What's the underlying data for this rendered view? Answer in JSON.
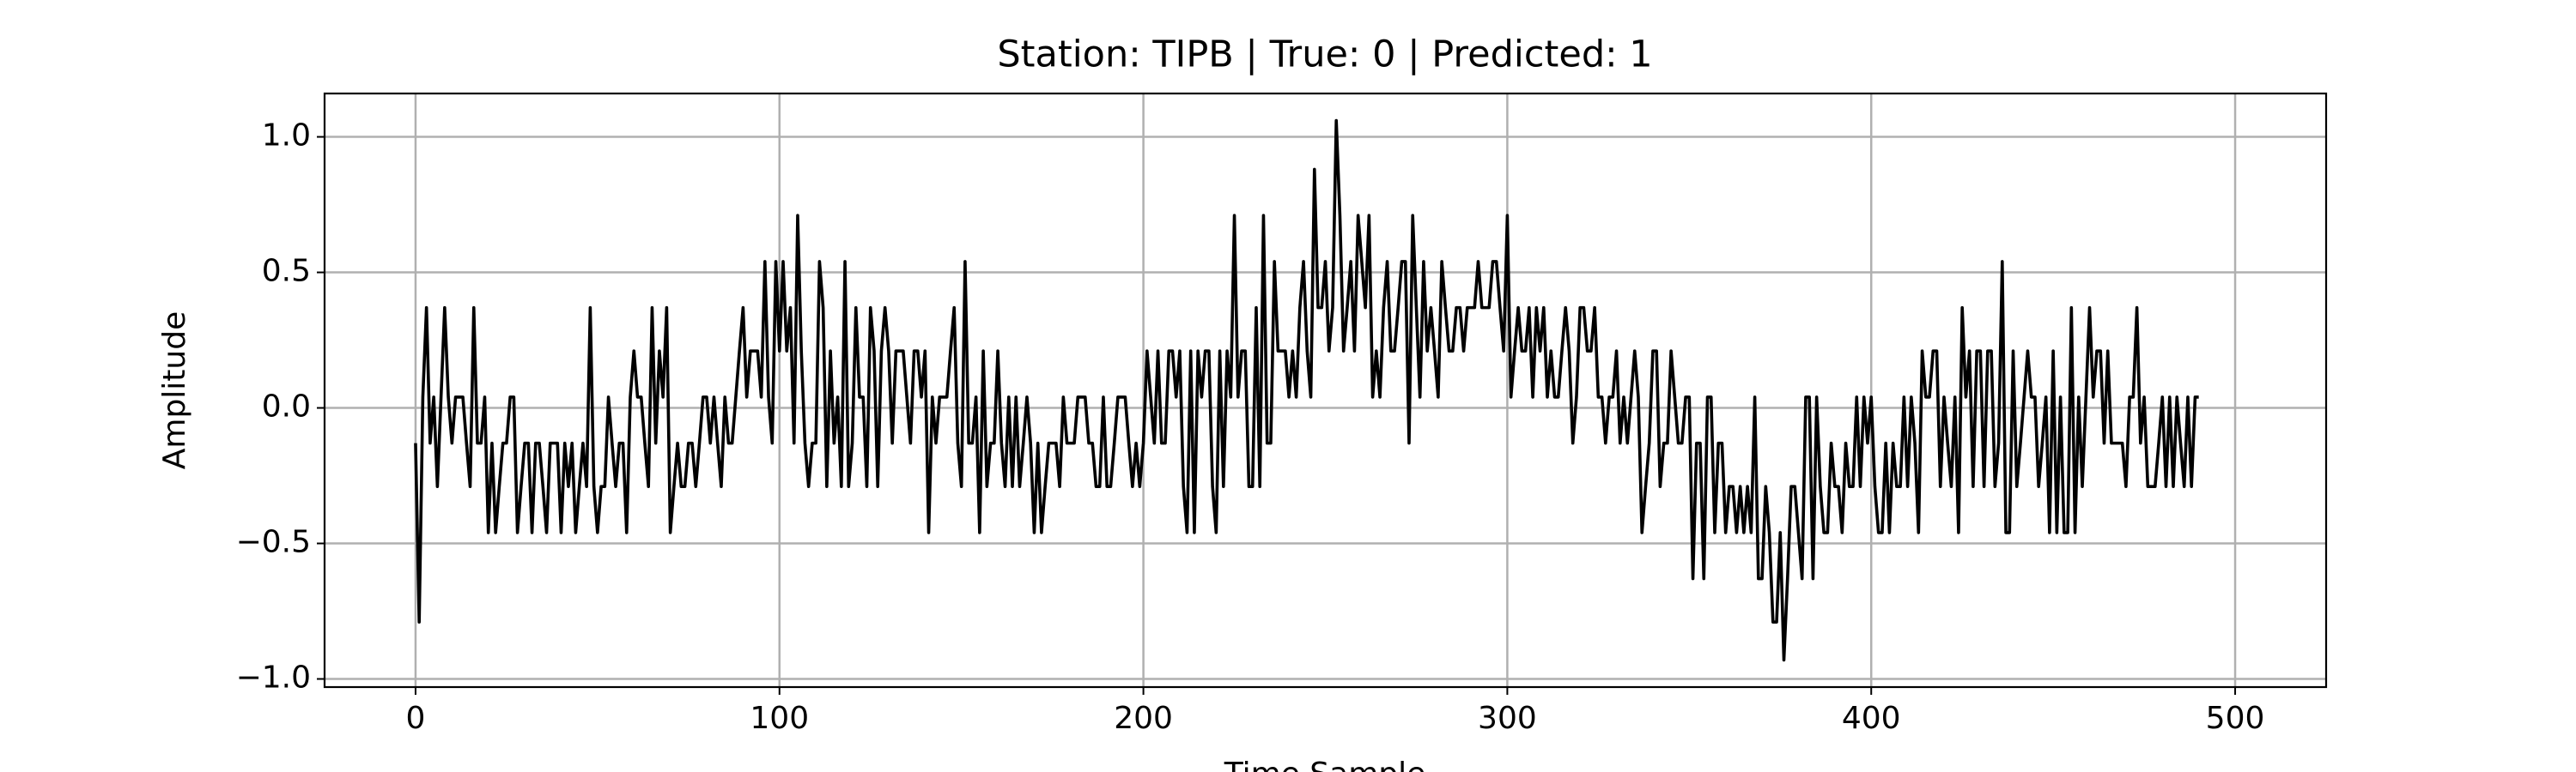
{
  "chart_data": {
    "type": "line",
    "title": "Station: TIPB | True: 0 | Predicted: 1",
    "x_label": "Time Sample",
    "y_label": "Amplitude",
    "color": "#000000",
    "grid": true,
    "xlim": [
      -25,
      525
    ],
    "xticks": [
      0,
      100,
      200,
      300,
      400,
      500
    ],
    "ylim": [
      -1.03,
      1.16
    ],
    "yticks": [
      {
        "value": -1.0,
        "label": "−1.0"
      },
      {
        "value": -0.5,
        "label": "−0.5"
      },
      {
        "value": 0.0,
        "label": "0.0"
      },
      0.5,
      {
        "value": 1.0,
        "label": "1.0"
      }
    ],
    "values": [
      -0.13,
      -0.79,
      0.04,
      0.37,
      -0.13,
      0.04,
      -0.29,
      0.04,
      0.37,
      0.04,
      -0.13,
      0.04,
      0.04,
      0.04,
      -0.13,
      -0.29,
      0.37,
      -0.13,
      -0.13,
      0.04,
      -0.46,
      -0.13,
      -0.46,
      -0.29,
      -0.13,
      -0.13,
      0.04,
      0.04,
      -0.46,
      -0.29,
      -0.13,
      -0.13,
      -0.46,
      -0.13,
      -0.13,
      -0.29,
      -0.46,
      -0.13,
      -0.13,
      -0.13,
      -0.46,
      -0.13,
      -0.29,
      -0.13,
      -0.46,
      -0.29,
      -0.13,
      -0.29,
      0.37,
      -0.29,
      -0.46,
      -0.29,
      -0.29,
      0.04,
      -0.13,
      -0.29,
      -0.13,
      -0.13,
      -0.46,
      0.04,
      0.21,
      0.04,
      0.04,
      -0.13,
      -0.29,
      0.37,
      -0.13,
      0.21,
      0.04,
      0.37,
      -0.46,
      -0.29,
      -0.13,
      -0.29,
      -0.29,
      -0.13,
      -0.13,
      -0.29,
      -0.13,
      0.04,
      0.04,
      -0.13,
      0.04,
      -0.13,
      -0.29,
      0.04,
      -0.13,
      -0.13,
      0.04,
      0.21,
      0.37,
      0.04,
      0.21,
      0.21,
      0.21,
      0.04,
      0.54,
      0.04,
      -0.13,
      0.54,
      0.21,
      0.54,
      0.21,
      0.37,
      -0.13,
      0.71,
      0.21,
      -0.13,
      -0.29,
      -0.13,
      -0.13,
      0.54,
      0.37,
      -0.29,
      0.21,
      -0.13,
      0.04,
      -0.29,
      0.54,
      -0.29,
      -0.13,
      0.37,
      0.04,
      0.04,
      -0.29,
      0.37,
      0.21,
      -0.29,
      0.21,
      0.37,
      0.21,
      -0.13,
      0.21,
      0.21,
      0.21,
      0.04,
      -0.13,
      0.21,
      0.21,
      0.04,
      0.21,
      -0.46,
      0.04,
      -0.13,
      0.04,
      0.04,
      0.04,
      0.21,
      0.37,
      -0.13,
      -0.29,
      0.54,
      -0.13,
      -0.13,
      0.04,
      -0.46,
      0.21,
      -0.29,
      -0.13,
      -0.13,
      0.21,
      -0.13,
      -0.29,
      0.04,
      -0.29,
      0.04,
      -0.29,
      -0.13,
      0.04,
      -0.13,
      -0.46,
      -0.13,
      -0.46,
      -0.29,
      -0.13,
      -0.13,
      -0.13,
      -0.29,
      0.04,
      -0.13,
      -0.13,
      -0.13,
      0.04,
      0.04,
      0.04,
      -0.13,
      -0.13,
      -0.29,
      -0.29,
      0.04,
      -0.29,
      -0.29,
      -0.13,
      0.04,
      0.04,
      0.04,
      -0.13,
      -0.29,
      -0.13,
      -0.29,
      -0.13,
      0.21,
      0.04,
      -0.13,
      0.21,
      -0.13,
      -0.13,
      0.21,
      0.21,
      0.04,
      0.21,
      -0.29,
      -0.46,
      0.21,
      -0.46,
      0.21,
      0.04,
      0.21,
      0.21,
      -0.29,
      -0.46,
      0.21,
      -0.29,
      0.21,
      0.04,
      0.71,
      0.04,
      0.21,
      0.21,
      -0.29,
      -0.29,
      0.37,
      -0.29,
      0.71,
      -0.13,
      -0.13,
      0.54,
      0.21,
      0.21,
      0.21,
      0.04,
      0.21,
      0.04,
      0.37,
      0.54,
      0.21,
      0.04,
      0.88,
      0.37,
      0.37,
      0.54,
      0.21,
      0.37,
      1.06,
      0.71,
      0.21,
      0.37,
      0.54,
      0.21,
      0.71,
      0.54,
      0.37,
      0.71,
      0.04,
      0.21,
      0.04,
      0.37,
      0.54,
      0.21,
      0.21,
      0.37,
      0.54,
      0.54,
      -0.13,
      0.71,
      0.37,
      0.04,
      0.54,
      0.21,
      0.37,
      0.21,
      0.04,
      0.54,
      0.37,
      0.21,
      0.21,
      0.37,
      0.37,
      0.21,
      0.37,
      0.37,
      0.37,
      0.54,
      0.37,
      0.37,
      0.37,
      0.54,
      0.54,
      0.37,
      0.21,
      0.71,
      0.04,
      0.21,
      0.37,
      0.21,
      0.21,
      0.37,
      0.04,
      0.37,
      0.21,
      0.37,
      0.04,
      0.21,
      0.04,
      0.04,
      0.21,
      0.37,
      0.21,
      -0.13,
      0.04,
      0.37,
      0.37,
      0.21,
      0.21,
      0.37,
      0.04,
      0.04,
      -0.13,
      0.04,
      0.04,
      0.21,
      -0.13,
      0.04,
      -0.13,
      0.04,
      0.21,
      0.04,
      -0.46,
      -0.29,
      -0.13,
      0.21,
      0.21,
      -0.29,
      -0.13,
      -0.13,
      0.21,
      0.04,
      -0.13,
      -0.13,
      0.04,
      0.04,
      -0.63,
      -0.13,
      -0.13,
      -0.63,
      0.04,
      0.04,
      -0.46,
      -0.13,
      -0.13,
      -0.46,
      -0.29,
      -0.29,
      -0.46,
      -0.29,
      -0.46,
      -0.29,
      -0.46,
      0.04,
      -0.63,
      -0.63,
      -0.29,
      -0.46,
      -0.79,
      -0.79,
      -0.46,
      -0.93,
      -0.63,
      -0.29,
      -0.29,
      -0.46,
      -0.63,
      0.04,
      0.04,
      -0.63,
      0.04,
      -0.29,
      -0.46,
      -0.46,
      -0.13,
      -0.29,
      -0.29,
      -0.46,
      -0.13,
      -0.29,
      -0.29,
      0.04,
      -0.29,
      0.04,
      -0.13,
      0.04,
      -0.29,
      -0.46,
      -0.46,
      -0.13,
      -0.46,
      -0.13,
      -0.29,
      -0.29,
      0.04,
      -0.29,
      0.04,
      -0.13,
      -0.46,
      0.21,
      0.04,
      0.04,
      0.21,
      0.21,
      -0.29,
      0.04,
      -0.13,
      -0.29,
      0.04,
      -0.46,
      0.37,
      0.04,
      0.21,
      -0.29,
      0.21,
      0.21,
      -0.29,
      0.21,
      0.21,
      -0.29,
      -0.13,
      0.54,
      -0.46,
      -0.46,
      0.21,
      -0.29,
      -0.13,
      0.04,
      0.21,
      0.04,
      0.04,
      -0.29,
      -0.13,
      0.04,
      -0.46,
      0.21,
      -0.46,
      0.04,
      -0.46,
      -0.46,
      0.37,
      -0.46,
      0.04,
      -0.29,
      0.04,
      0.37,
      0.04,
      0.21,
      0.21,
      -0.13,
      0.21,
      -0.13,
      -0.13,
      -0.13,
      -0.13,
      -0.29,
      0.04,
      0.04,
      0.37,
      -0.13,
      0.04,
      -0.29,
      -0.29,
      -0.29,
      -0.13,
      0.04,
      -0.29,
      0.04,
      -0.29,
      0.04,
      -0.13,
      -0.29,
      0.04,
      -0.29,
      0.04,
      0.04
    ]
  }
}
